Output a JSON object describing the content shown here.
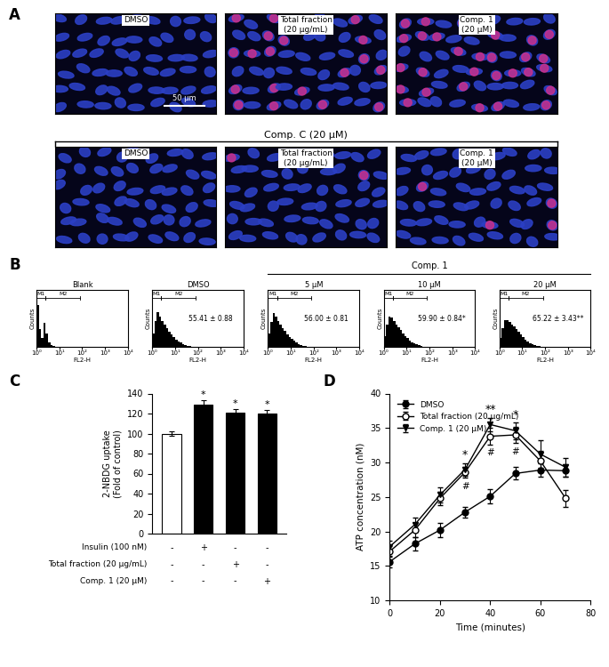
{
  "chart_data": [
    {
      "type": "image_grid",
      "panel": "A",
      "scale_bar": "50 μm",
      "rows": [
        {
          "labels": [
            "DMSO",
            "Total fraction\n(20 μg/mL)",
            "Comp. 1\n(20 μM)"
          ]
        },
        {
          "group_label": "Comp. C (20 μM)",
          "labels": [
            "DMSO",
            "Total fraction\n(20 μg/mL)",
            "Comp. 1\n(20 μM)"
          ]
        }
      ]
    },
    {
      "type": "histogram",
      "panel": "B",
      "xlabel": "FL2-H",
      "ylabel": "Counts",
      "log": "x",
      "xlim": [
        1,
        10000
      ],
      "xticks": [
        {
          "value": 1,
          "label": "10⁰"
        },
        {
          "value": 10,
          "label": "10¹"
        },
        {
          "value": 100,
          "label": "10²"
        },
        {
          "value": 1000,
          "label": "10³"
        },
        {
          "value": 10000,
          "label": "10⁴"
        }
      ],
      "ylim": [
        0,
        130
      ],
      "yticks": [],
      "tick_labels": "x",
      "bins": [
        1,
        1.26,
        1.58,
        2,
        2.5,
        3.2,
        4,
        5,
        6.3,
        8,
        10,
        12.6,
        15.8,
        20,
        25,
        32,
        40,
        50,
        63,
        80,
        100
      ],
      "gates": [
        {
          "label": "M1",
          "range": [
            1,
            2.5
          ]
        },
        {
          "label": "M2",
          "range": [
            2.5,
            80
          ]
        }
      ],
      "panels": [
        {
          "title": "Blank",
          "counts": [
            95,
            40,
            20,
            55,
            30,
            10,
            4,
            2,
            1,
            1,
            0,
            0,
            0,
            0,
            0,
            0,
            0,
            0,
            0,
            0
          ]
        },
        {
          "title": "DMSO",
          "annotation": "55.41 ± 0.88",
          "counts": [
            30,
            60,
            80,
            70,
            60,
            50,
            42,
            35,
            28,
            22,
            17,
            13,
            10,
            7,
            5,
            3,
            2,
            1,
            1,
            0
          ]
        },
        {
          "title": "Comp. 1",
          "subpanels": [
            {
              "title": "5 μM",
              "annotation": "56.00 ± 0.81",
              "counts": [
                30,
                58,
                78,
                70,
                60,
                50,
                43,
                36,
                29,
                23,
                18,
                14,
                10,
                7,
                5,
                3,
                2,
                1,
                1,
                0
              ]
            },
            {
              "title": "10 μM",
              "annotation": "59.90 ± 0.84*",
              "counts": [
                25,
                50,
                70,
                68,
                60,
                52,
                45,
                38,
                31,
                25,
                20,
                15,
                11,
                8,
                6,
                4,
                2,
                1,
                1,
                0
              ]
            },
            {
              "title": "20 μM",
              "annotation": "65.22 ± 3.43**",
              "counts": [
                20,
                42,
                62,
                62,
                58,
                52,
                46,
                40,
                34,
                28,
                22,
                17,
                13,
                9,
                7,
                4,
                3,
                2,
                1,
                0
              ]
            }
          ]
        }
      ]
    },
    {
      "type": "bar",
      "panel": "C",
      "ylabel": "2-NBDG uptake\n(Fold of control)",
      "categories": [
        null,
        null,
        null,
        null
      ],
      "values": [
        100,
        129,
        121,
        120
      ],
      "errors": [
        2,
        4.5,
        3.5,
        3.5
      ],
      "colors": [
        "#ffffff",
        "#000000",
        "#000000",
        "#000000"
      ],
      "significance": [
        null,
        "*",
        "*",
        "*"
      ],
      "ylim": [
        0,
        140
      ],
      "yticks": [
        0,
        20,
        40,
        60,
        80,
        100,
        120,
        140
      ],
      "treatments": [
        {
          "label": "Insulin (100 nM)",
          "marks": [
            "-",
            "+",
            "-",
            "-"
          ]
        },
        {
          "label": "Total fraction (20 μg/mL)",
          "marks": [
            "-",
            "-",
            "+",
            "-"
          ]
        },
        {
          "label": "Comp. 1 (20 μM)",
          "marks": [
            "-",
            "-",
            "-",
            "+"
          ]
        }
      ]
    },
    {
      "type": "line",
      "panel": "D",
      "xlabel": "Time (minutes)",
      "ylabel": "ATP concentration (nM)",
      "x": [
        0,
        10,
        20,
        30,
        40,
        50,
        60,
        70
      ],
      "xlim": [
        0,
        80
      ],
      "xticks": [
        0,
        20,
        40,
        60,
        80
      ],
      "ylim": [
        10,
        40
      ],
      "yticks": [
        10,
        15,
        20,
        25,
        30,
        35,
        40
      ],
      "legend": "upper left",
      "series": [
        {
          "name": "DMSO",
          "color": "#000000",
          "marker": "circle",
          "values": [
            15.6,
            18.2,
            20.2,
            22.8,
            25.1,
            28.4,
            28.9,
            28.8
          ],
          "errors": [
            0.8,
            1.0,
            1.0,
            0.8,
            1.0,
            0.9,
            1.0,
            0.9
          ]
        },
        {
          "name": "Total fraction (20 μg/mL)",
          "color": "#000000",
          "marker": "open_circle",
          "values": [
            17.1,
            20.2,
            24.8,
            28.6,
            33.8,
            34.0,
            30.2,
            24.8
          ],
          "errors": [
            0.8,
            1.0,
            1.0,
            0.8,
            1.2,
            1.2,
            1.5,
            1.2
          ]
        },
        {
          "name": "Comp. 1 (20 μM)",
          "color": "#000000",
          "marker": "triangle_down",
          "values": [
            17.8,
            21.0,
            25.3,
            29.0,
            35.5,
            34.6,
            31.2,
            29.3
          ],
          "errors": [
            0.8,
            1.0,
            1.1,
            0.9,
            1.0,
            1.2,
            2.0,
            1.4
          ]
        }
      ],
      "annotations_above": [
        {
          "x": 30,
          "text": "*"
        },
        {
          "x": 40,
          "text": "**"
        },
        {
          "x": 50,
          "text": "*"
        }
      ],
      "annotations_below": [
        {
          "x": 30,
          "text": "#"
        },
        {
          "x": 40,
          "text": "#"
        },
        {
          "x": 50,
          "text": "#"
        }
      ]
    }
  ]
}
